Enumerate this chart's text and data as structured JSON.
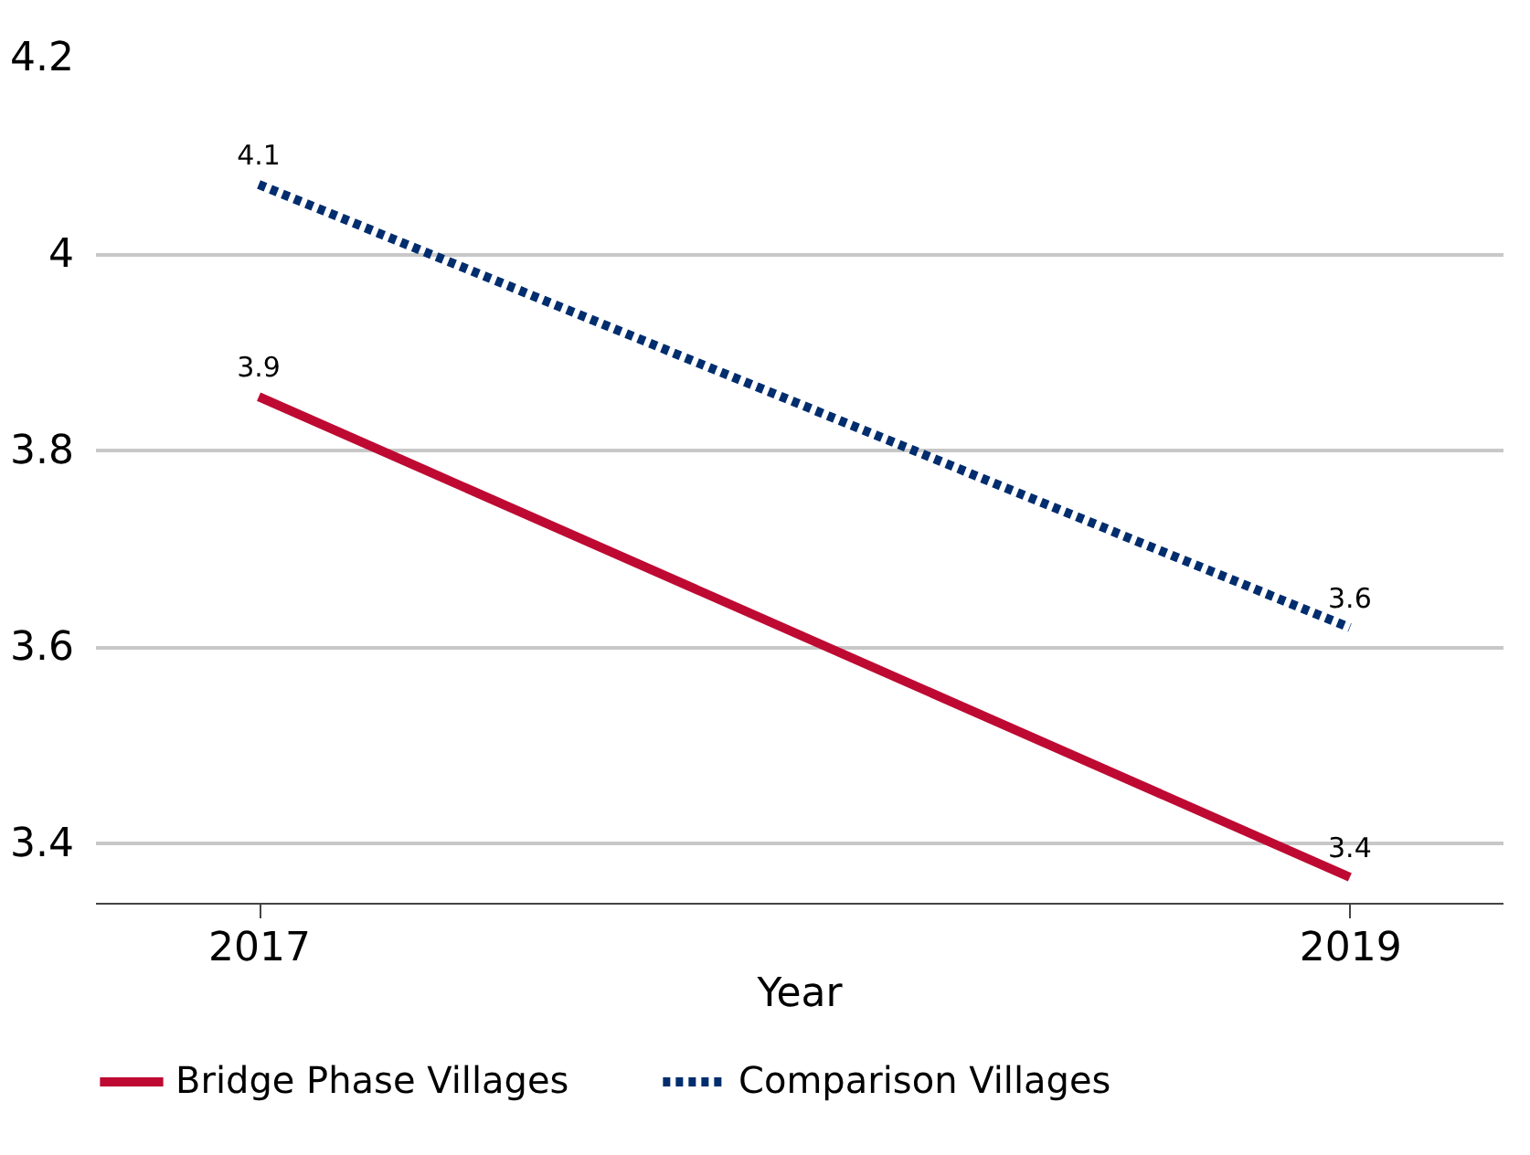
{
  "chart_data": {
    "type": "line",
    "xlabel": "Year",
    "x": [
      2017,
      2019
    ],
    "xlim": [
      2016.7,
      2019.28
    ],
    "xticks": [
      2017,
      2019
    ],
    "ylim": [
      3.339,
      4.2
    ],
    "yticks": [
      3.4,
      3.6,
      3.8,
      4,
      4.2
    ],
    "grid": "y",
    "legend": "bottom",
    "series": [
      {
        "name": "Bridge Phase Villages",
        "color": "#be0a32",
        "line_style": "solid",
        "values": [
          3.854,
          3.365
        ],
        "value_labels": [
          "3.9",
          "3.4"
        ]
      },
      {
        "name": "Comparison Villages",
        "color": "#002d6e",
        "line_style": "dotted",
        "values": [
          4.07,
          3.619
        ],
        "value_labels": [
          "4.1",
          "3.6"
        ]
      }
    ]
  }
}
